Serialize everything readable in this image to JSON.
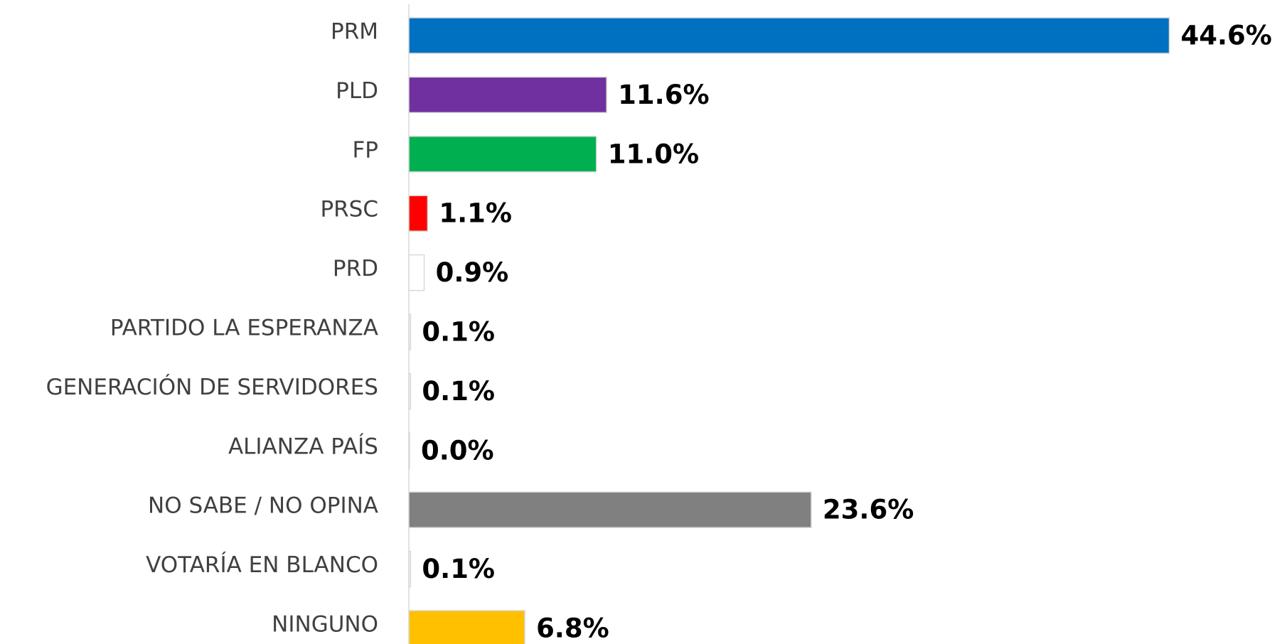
{
  "chart_data": {
    "type": "bar",
    "categories": [
      "PRM",
      "PLD",
      "FP",
      "PRSC",
      "PRD",
      "PARTIDO LA ESPERANZA",
      "GENERACIÓN DE SERVIDORES",
      "ALIANZA PAÍS",
      "NO SABE / NO OPINA",
      "VOTARÍA EN BLANCO",
      "NINGUNO"
    ],
    "values": [
      44.6,
      11.6,
      11.0,
      1.1,
      0.9,
      0.1,
      0.1,
      0.0,
      23.6,
      0.1,
      6.8
    ],
    "value_labels": [
      "44.6%",
      "11.6%",
      "11.0%",
      "1.1%",
      "0.9%",
      "0.1%",
      "0.1%",
      "0.0%",
      "23.6%",
      "0.1%",
      "6.8%"
    ],
    "colors": [
      "#0070c0",
      "#7030a0",
      "#00b050",
      "#ff0000",
      "#ffffff",
      "#f2f2f2",
      "#f2f2f2",
      "#f2f2f2",
      "#808080",
      "#f2f2f2",
      "#ffc000"
    ]
  }
}
